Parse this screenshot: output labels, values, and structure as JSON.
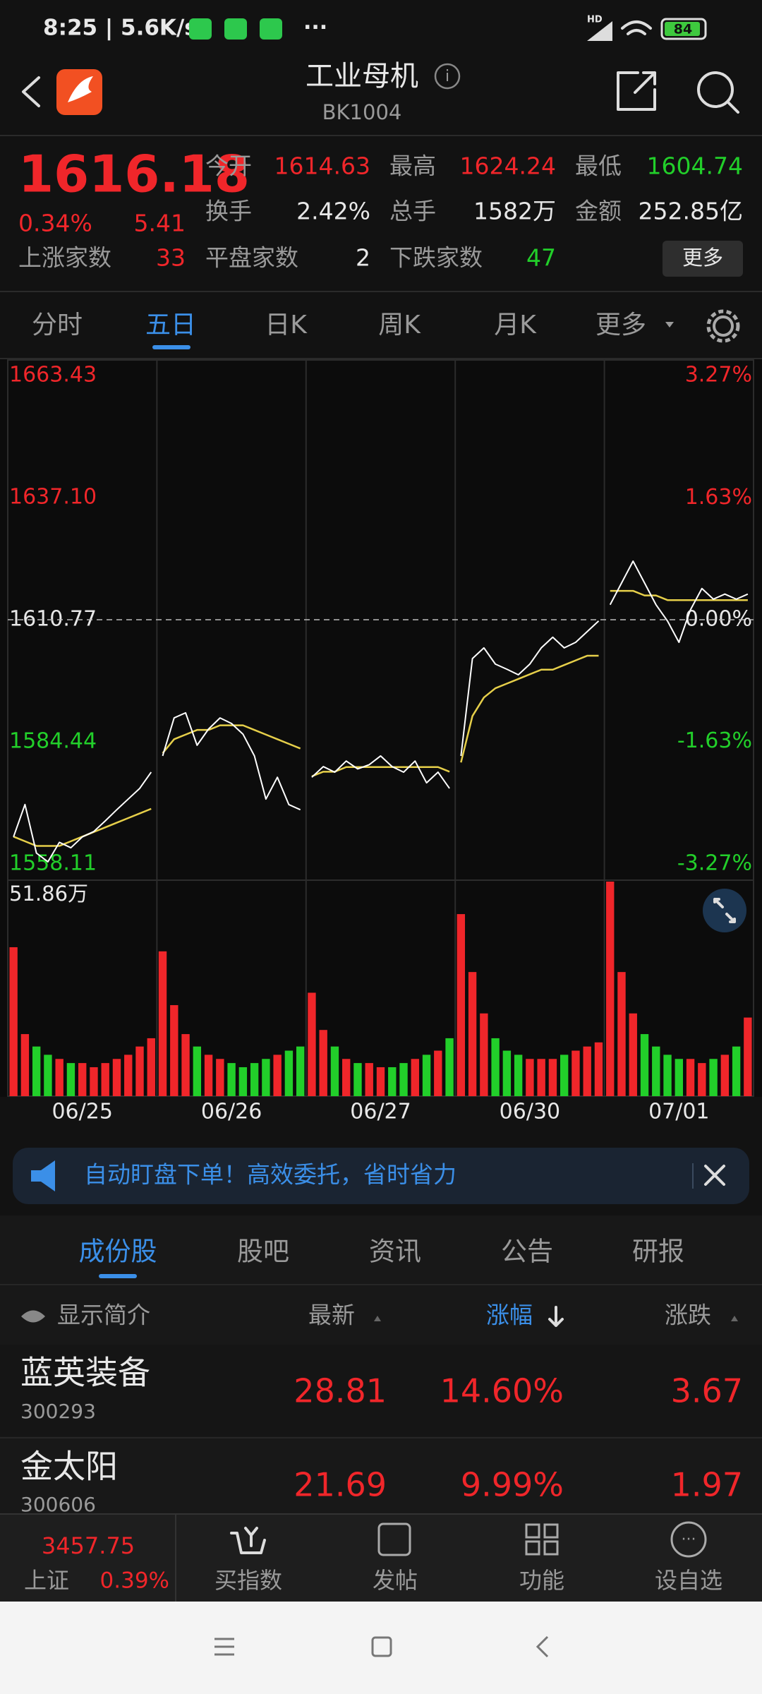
{
  "status": {
    "time": "8:25 | 5.6K/s",
    "hd": "HD",
    "battery": "84"
  },
  "header": {
    "title": "工业母机",
    "code": "BK1004"
  },
  "quote": {
    "price": "1616.18",
    "change_pct": "0.34%",
    "change": "5.41",
    "rows": [
      [
        {
          "label": "今开",
          "value": "1614.63"
        },
        {
          "label": "最高",
          "value": "1624.24"
        },
        {
          "label": "最低",
          "value": "1604.74"
        }
      ],
      [
        {
          "label": "换手",
          "value": "2.42%"
        },
        {
          "label": "总手",
          "value": "1582万"
        },
        {
          "label": "金额",
          "value": "252.85亿"
        }
      ],
      [
        {
          "label": "上涨家数",
          "value": "33"
        },
        {
          "label": "平盘家数",
          "value": "2"
        },
        {
          "label": "下跌家数",
          "value": "47"
        }
      ]
    ],
    "more": "更多"
  },
  "tabs": [
    "分时",
    "五日",
    "日K",
    "周K",
    "月K",
    "更多"
  ],
  "chart_data": {
    "type": "line",
    "up_color": "#f0262a",
    "down_color": "#22cf2a",
    "avg_color": "#e6cf4a",
    "price_color": "#ffffff",
    "ylim": [
      1558.11,
      1663.43
    ],
    "yticks": [
      1558.11,
      1584.44,
      1610.77,
      {
        "value": 1637.1,
        "label": "1637.10"
      },
      1663.43
    ],
    "y2lim": [
      -3.27,
      3.27
    ],
    "y2ticks": [
      {
        "value": -3.27,
        "label": "-3.27%"
      },
      {
        "value": -1.63,
        "label": "-1.63%"
      },
      {
        "value": 0,
        "label": "0.00%"
      },
      {
        "value": 1.63,
        "label": "1.63%"
      },
      {
        "value": 3.27,
        "label": "3.27%"
      }
    ],
    "volume_max": {
      "value": 51.86,
      "label": "51.86万"
    },
    "days": [
      {
        "date": "06/25",
        "price": [
          1563.94,
          1570.93,
          1560.45,
          1558.58,
          1562.77,
          1561.6,
          1563.94,
          1565.1,
          1567.4,
          1569.8,
          1572.1,
          1574.4,
          1577.9
        ],
        "avg": [
          1564,
          1563,
          1562,
          1562,
          1562,
          1563,
          1564,
          1565,
          1566,
          1567,
          1568,
          1569,
          1570
        ],
        "volume": [
          36,
          15,
          12,
          10,
          9,
          8,
          8,
          7,
          8,
          9,
          10,
          12,
          14
        ]
      },
      {
        "date": "06/26",
        "price": [
          1581.4,
          1589.6,
          1590.7,
          1583.7,
          1587.2,
          1589.6,
          1588.4,
          1586.1,
          1581.4,
          1572.1,
          1576.8,
          1570.9,
          1569.8
        ],
        "avg": [
          1582,
          1585,
          1586,
          1587,
          1587,
          1588,
          1588,
          1588,
          1587,
          1586,
          1585,
          1584,
          1583
        ],
        "volume": [
          35,
          22,
          15,
          12,
          10,
          9,
          8,
          7,
          8,
          9,
          10,
          11,
          12
        ]
      },
      {
        "date": "06/27",
        "price": [
          1576.8,
          1579.1,
          1577.9,
          1580.3,
          1578.6,
          1579.5,
          1581.4,
          1579.1,
          1577.9,
          1580.3,
          1575.6,
          1577.9,
          1574.4
        ],
        "avg": [
          1577,
          1578,
          1578,
          1579,
          1579,
          1579,
          1579,
          1579,
          1579,
          1579,
          1579,
          1579,
          1578
        ],
        "volume": [
          25,
          16,
          12,
          9,
          8,
          8,
          7,
          7,
          8,
          9,
          10,
          11,
          14
        ]
      },
      {
        "date": "06/30",
        "price": [
          1581.4,
          1602.4,
          1604.7,
          1601.2,
          1600.1,
          1598.9,
          1601.2,
          1604.7,
          1607.0,
          1604.7,
          1605.9,
          1608.2,
          1610.5
        ],
        "avg": [
          1580,
          1590,
          1594,
          1596,
          1597,
          1598,
          1599,
          1600,
          1600,
          1601,
          1602,
          1603,
          1603
        ],
        "volume": [
          44,
          30,
          20,
          14,
          11,
          10,
          9,
          9,
          9,
          10,
          11,
          12,
          13
        ]
      },
      {
        "date": "07/01",
        "price": [
          1614.0,
          1618.7,
          1623.4,
          1618.7,
          1614.0,
          1610.5,
          1605.9,
          1612.9,
          1617.5,
          1615.2,
          1616.3,
          1615.2,
          1616.3
        ],
        "avg": [
          1617,
          1617,
          1617,
          1616,
          1616,
          1615,
          1615,
          1615,
          1615,
          1615,
          1615,
          1615,
          1615
        ],
        "volume": [
          51.86,
          30,
          20,
          15,
          12,
          10,
          9,
          9,
          8,
          9,
          10,
          12,
          19
        ]
      }
    ]
  },
  "banner": {
    "text": "自动盯盘下单！高效委托，省时省力"
  },
  "list": {
    "tabs": [
      "成份股",
      "股吧",
      "资讯",
      "公告",
      "研报"
    ],
    "columns": [
      "显示简介",
      "最新",
      "涨幅",
      "涨跌"
    ],
    "rows": [
      {
        "name": "蓝英装备",
        "code": "300293",
        "price": "28.81",
        "pct": "14.60%",
        "change": "3.67"
      },
      {
        "name": "金太阳",
        "code": "300606",
        "price": "21.69",
        "pct": "9.99%",
        "change": "1.97"
      }
    ]
  },
  "bottom": {
    "index_value": "3457.75",
    "index_name": "上证",
    "index_pct": "0.39%",
    "nav": [
      "买指数",
      "发帖",
      "功能",
      "设自选"
    ]
  }
}
